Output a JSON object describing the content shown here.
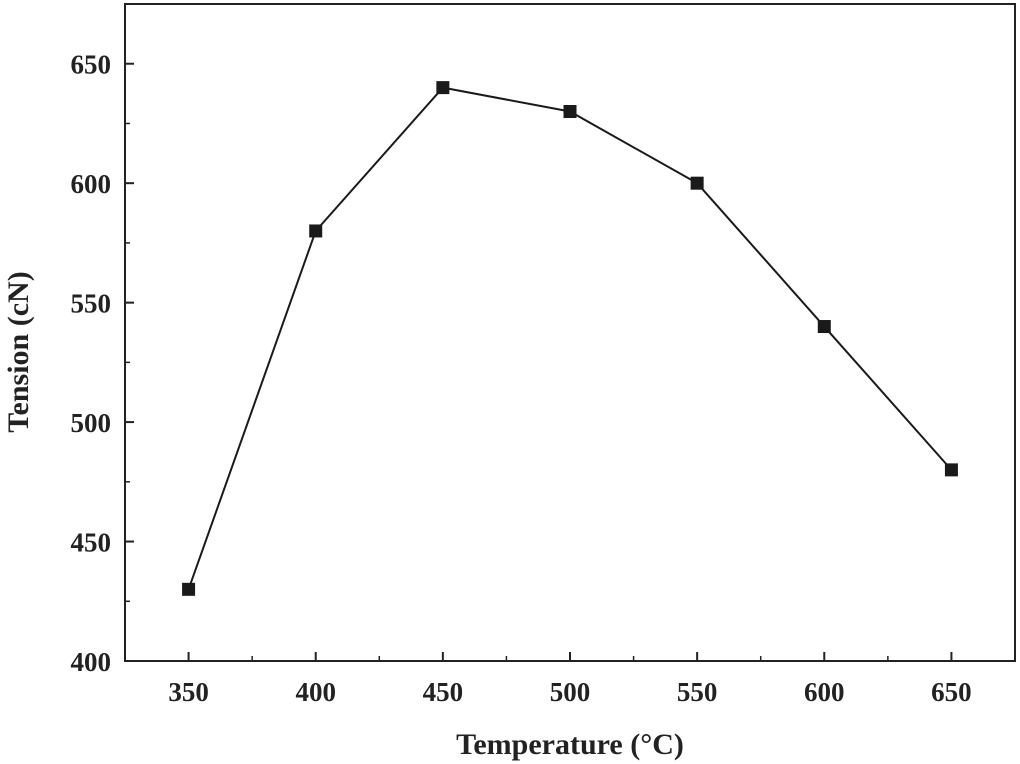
{
  "chart_data": {
    "type": "line",
    "xlabel": "Temperature  (°C)",
    "ylabel": "Tension (cN)",
    "xlim": [
      325,
      675
    ],
    "ylim": [
      400,
      675
    ],
    "x_ticks": [
      350,
      400,
      450,
      500,
      550,
      600,
      650
    ],
    "y_ticks": [
      400,
      450,
      500,
      550,
      600,
      650
    ],
    "x_minor_step": 25,
    "y_minor_step": 25,
    "grid": false,
    "legend": "none",
    "series": [
      {
        "marker": "square",
        "color": "#1a1a1a",
        "x": [
          350,
          400,
          450,
          500,
          550,
          600,
          650
        ],
        "y": [
          430,
          580,
          640,
          630,
          600,
          540,
          480
        ]
      }
    ]
  }
}
